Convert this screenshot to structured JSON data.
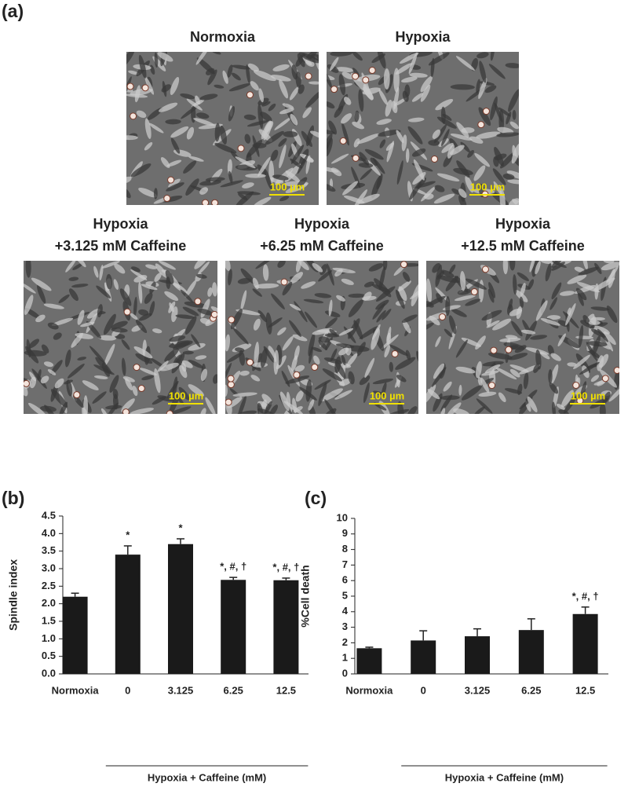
{
  "micrographs": {
    "panel_label": "(a)",
    "images": [
      {
        "title": [
          "Normoxia"
        ],
        "scale_bar": "100 µm"
      },
      {
        "title": [
          "Hypoxia"
        ],
        "scale_bar": "100 µm"
      },
      {
        "title": [
          "Hypoxia",
          "+3.125 mM Caffeine"
        ],
        "scale_bar": "100 µm"
      },
      {
        "title": [
          "Hypoxia",
          "+6.25 mM Caffeine"
        ],
        "scale_bar": "100 µm"
      },
      {
        "title": [
          "Hypoxia",
          "+12.5 mM Caffeine"
        ],
        "scale_bar": "100 µm"
      }
    ]
  },
  "chart_data": [
    {
      "type": "bar",
      "panel_label": "(b)",
      "ylabel": "Spindle index",
      "x_group_label": "Hypoxia + Caffeine (mM)",
      "categories": [
        "Normoxia",
        "0",
        "3.125",
        "6.25",
        "12.5"
      ],
      "values": [
        2.2,
        3.4,
        3.7,
        2.68,
        2.67
      ],
      "errors": [
        0.1,
        0.25,
        0.15,
        0.07,
        0.06
      ],
      "annotations": [
        null,
        "*",
        "*",
        "*, #, †",
        "*, #, †"
      ],
      "color": "#1a1a1a",
      "ylim": [
        0,
        4.5
      ],
      "yticks": [
        {
          "value": 0,
          "label": "0.0"
        },
        {
          "value": 0.5,
          "label": "0.5"
        },
        {
          "value": 1,
          "label": "1.0"
        },
        {
          "value": 1.5,
          "label": "1.5"
        },
        {
          "value": 2,
          "label": "2.0"
        },
        {
          "value": 2.5,
          "label": "2.5"
        },
        {
          "value": 3,
          "label": "3.0"
        },
        {
          "value": 3.5,
          "label": "3.5"
        },
        {
          "value": 4,
          "label": "4.0"
        },
        {
          "value": 4.5,
          "label": "4.5"
        }
      ]
    },
    {
      "type": "bar",
      "panel_label": "(c)",
      "ylabel": "%Cell death",
      "x_group_label": "Hypoxia + Caffeine (mM)",
      "categories": [
        "Normoxia",
        "0",
        "3.125",
        "6.25",
        "12.5"
      ],
      "values": [
        1.65,
        2.15,
        2.42,
        2.82,
        3.85
      ],
      "errors": [
        0.07,
        0.62,
        0.48,
        0.72,
        0.45
      ],
      "annotations": [
        null,
        null,
        null,
        null,
        "*, #, †"
      ],
      "color": "#1a1a1a",
      "ylim": [
        0,
        10
      ],
      "yticks": [
        0,
        1,
        2,
        3,
        4,
        5,
        6,
        7,
        8,
        9,
        10
      ]
    }
  ]
}
